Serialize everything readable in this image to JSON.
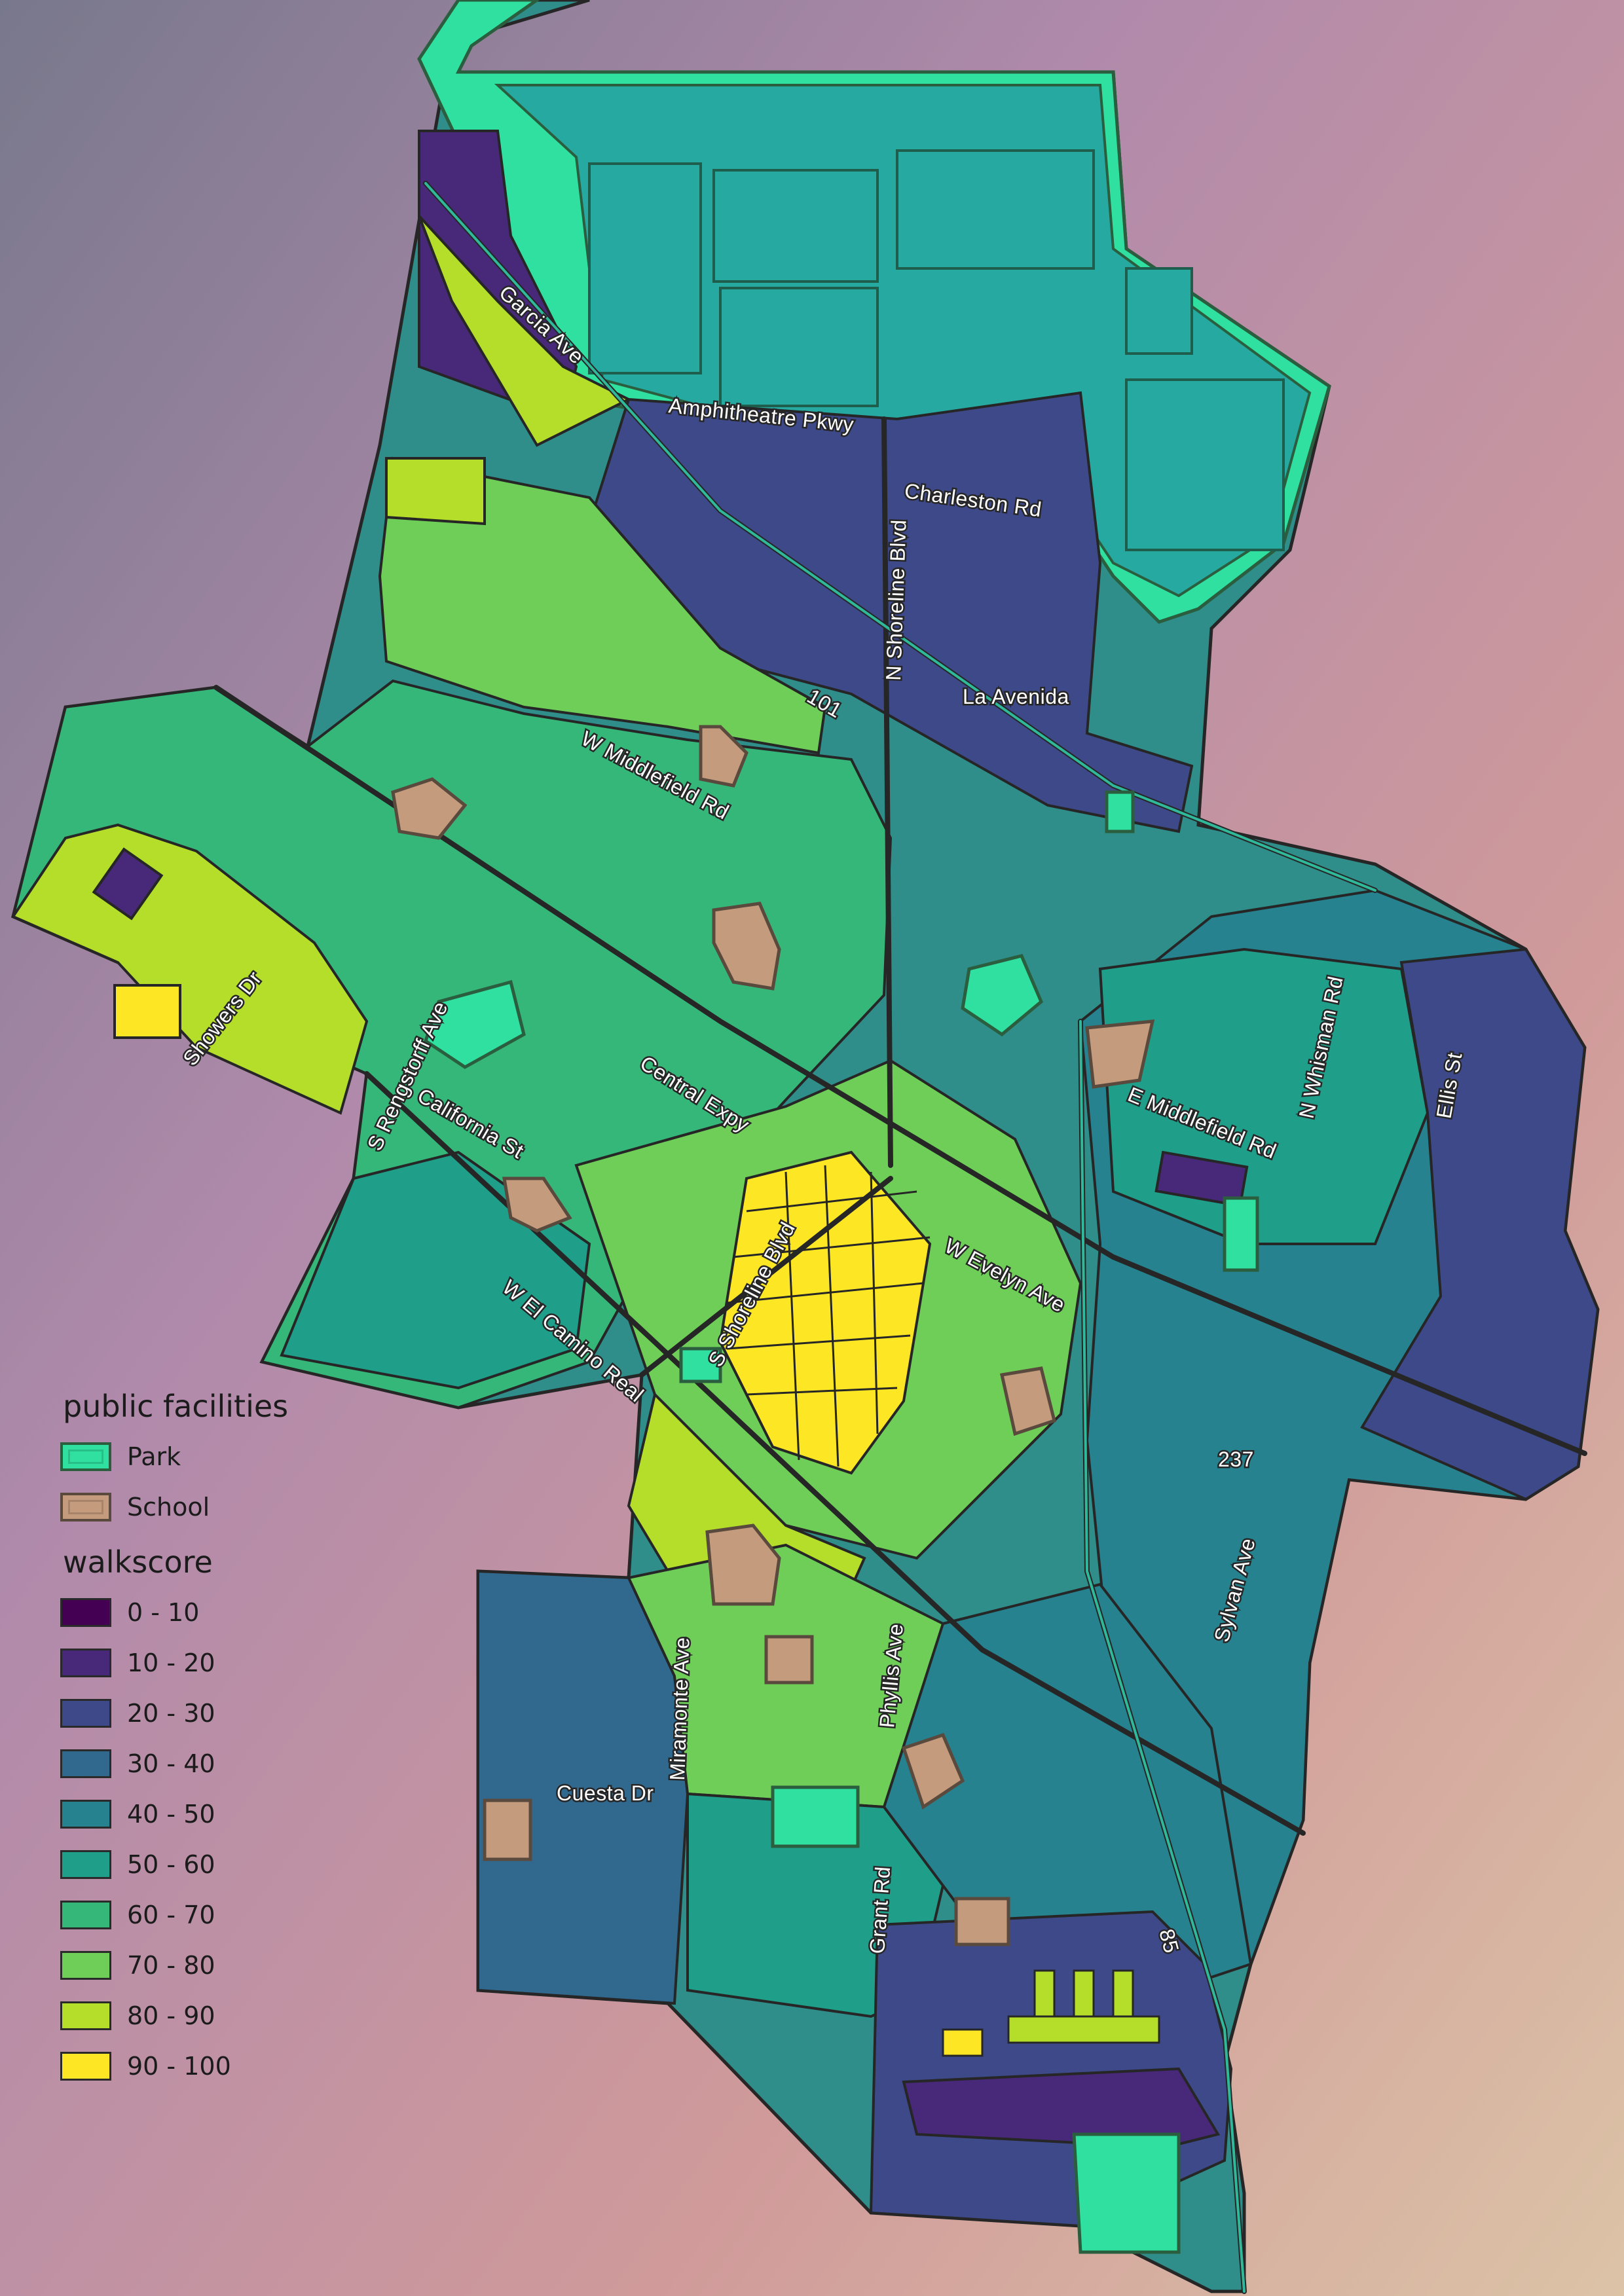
{
  "legend": {
    "facilities_title": "public facilities",
    "facilities": [
      {
        "label": "Park",
        "fill": "#2fe0a0",
        "border": "#2b5e3f"
      },
      {
        "label": "School",
        "fill": "#c49b7c",
        "border": "#5a4a3e"
      }
    ],
    "walkscore_title": "walkscore",
    "walkscore_classes": [
      {
        "label": "0 - 10",
        "color": "#440154"
      },
      {
        "label": "10 - 20",
        "color": "#482878"
      },
      {
        "label": "20 - 30",
        "color": "#3e4989"
      },
      {
        "label": "30 - 40",
        "color": "#31688e"
      },
      {
        "label": "40 - 50",
        "color": "#26828e"
      },
      {
        "label": "50 - 60",
        "color": "#1f9e89"
      },
      {
        "label": "60 - 70",
        "color": "#35b779"
      },
      {
        "label": "70 - 80",
        "color": "#6ece58"
      },
      {
        "label": "80 - 90",
        "color": "#b5de2b"
      },
      {
        "label": "90 - 100",
        "color": "#fde725"
      }
    ]
  },
  "roads": [
    "Garcia Ave",
    "Amphitheatre Pkwy",
    "Charleston Rd",
    "N Shoreline Blvd",
    "101",
    "La Avenida",
    "W Middlefield Rd",
    "Showers Dr",
    "S Rengstorff Ave",
    "California St",
    "Central Expy",
    "E Middlefield Rd",
    "N Whisman Rd",
    "Ellis St",
    "S Shoreline Blvd",
    "W Evelyn Ave",
    "W El Camino Real",
    "237",
    "Sylvan Ave",
    "Miramonte Ave",
    "Phyllis Ave",
    "Cuesta Dr",
    "Grant Rd",
    "85"
  ],
  "colors": {
    "bg_top_left": "#7f7f95",
    "bg_mid": "#b58aa8",
    "bg_bottom_right": "#d9c3a8",
    "park": "#2fe0a0",
    "school": "#c49b7c",
    "outline": "#262626"
  }
}
